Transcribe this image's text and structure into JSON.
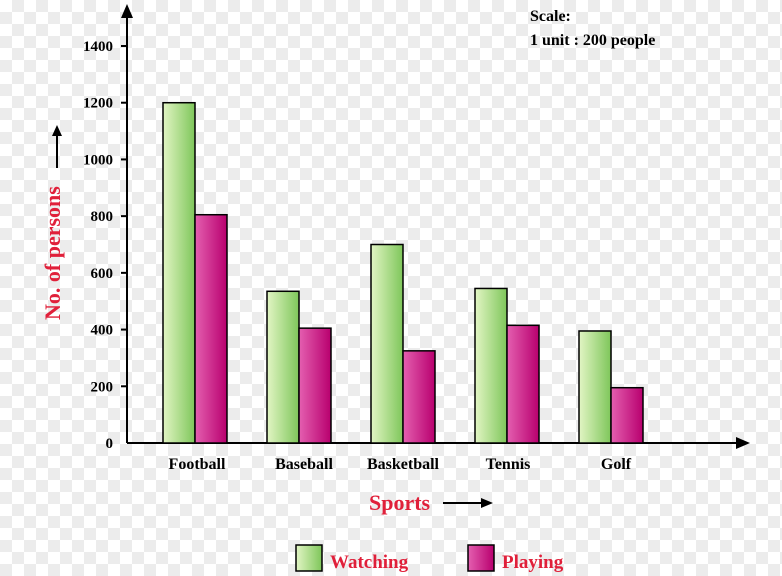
{
  "chart_data": {
    "type": "bar",
    "title": "",
    "scale_note": {
      "line1": "Scale:",
      "line2": "1 unit : 200 people"
    },
    "xlabel": "Sports",
    "ylabel": "No. of persons",
    "categories": [
      "Football",
      "Baseball",
      "Basketball",
      "Tennis",
      "Golf"
    ],
    "series": [
      {
        "name": "Watching",
        "values": [
          1200,
          535,
          700,
          545,
          395
        ]
      },
      {
        "name": "Playing",
        "values": [
          805,
          405,
          325,
          415,
          195
        ]
      }
    ],
    "ylim": [
      0,
      1400
    ],
    "yticks": [
      0,
      200,
      400,
      600,
      800,
      1000,
      1200,
      1400
    ],
    "grid": false,
    "legend_position": "bottom-center"
  },
  "colors": {
    "watching_fill_light": "#e2f5c4",
    "watching_fill_dark": "#7ec65a",
    "playing_fill_light": "#e45fb0",
    "playing_fill_dark": "#b8006e",
    "axis": "#000000",
    "axis_label": "#e0203a"
  }
}
